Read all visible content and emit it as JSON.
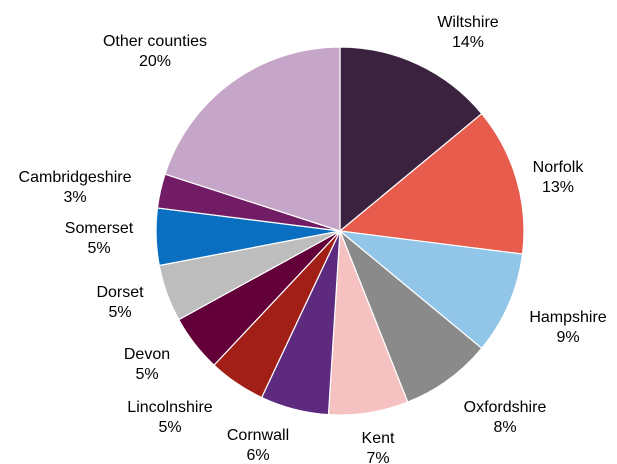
{
  "chart_data": {
    "type": "pie",
    "start_angle_deg": 0,
    "direction": "clockwise",
    "slices": [
      {
        "label": "Wiltshire",
        "value": 14,
        "display": "14%",
        "color": "#3B2340"
      },
      {
        "label": "Norfolk",
        "value": 13,
        "display": "13%",
        "color": "#E85C4E"
      },
      {
        "label": "Hampshire",
        "value": 9,
        "display": "9%",
        "color": "#92C6E8"
      },
      {
        "label": "Oxfordshire",
        "value": 8,
        "display": "8%",
        "color": "#8A8A8A"
      },
      {
        "label": "Kent",
        "value": 7,
        "display": "7%",
        "color": "#F6C1C1"
      },
      {
        "label": "Cornwall",
        "value": 6,
        "display": "6%",
        "color": "#5D2A7F"
      },
      {
        "label": "Lincolnshire",
        "value": 5,
        "display": "5%",
        "color": "#A11F16"
      },
      {
        "label": "Devon",
        "value": 5,
        "display": "5%",
        "color": "#63003A"
      },
      {
        "label": "Dorset",
        "value": 5,
        "display": "5%",
        "color": "#BDBDBD"
      },
      {
        "label": "Somerset",
        "value": 5,
        "display": "5%",
        "color": "#0A6EC1"
      },
      {
        "label": "Cambridgeshire",
        "value": 3,
        "display": "3%",
        "color": "#721C66"
      },
      {
        "label": "Other counties",
        "value": 20,
        "display": "20%",
        "color": "#C6A6C8"
      }
    ]
  }
}
